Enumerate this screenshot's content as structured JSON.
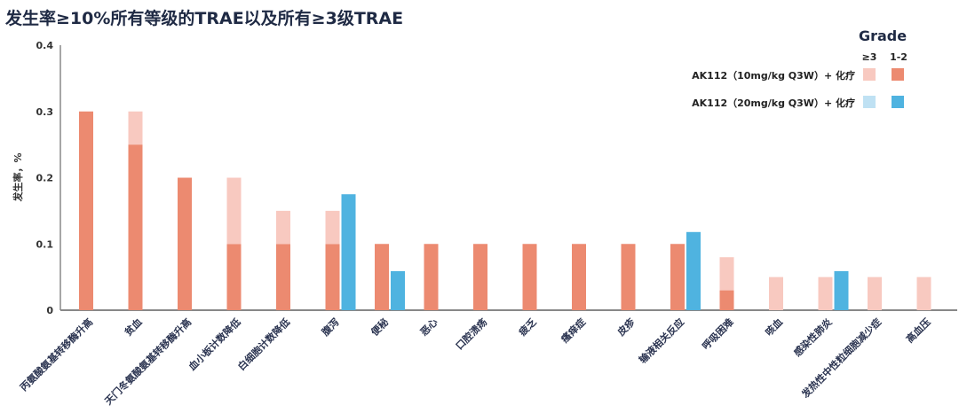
{
  "title": "发生率≥10%所有等级的TRAE以及所有≥3级TRAE",
  "chart_data": {
    "type": "bar",
    "stacked": true,
    "title": "发生率≥10%所有等级的TRAE以及所有≥3级TRAE",
    "xlabel": "",
    "ylabel": "发生率，%",
    "ylim": [
      0,
      0.4
    ],
    "yticks": [
      "0",
      "0.1",
      "0.2",
      "0.3",
      "0.4"
    ],
    "grid": false,
    "legend_placement": "top-right",
    "legend_title": "Grade",
    "legend_columns": [
      "≥3",
      "1-2"
    ],
    "categories": [
      "丙氨酸氨基转移酶升高",
      "贫血",
      "天门冬氨酸氨基转移酶升高",
      "血小板计数降低",
      "白细胞计数降低",
      "腹泻",
      "便秘",
      "恶心",
      "口腔溃疡",
      "疲乏",
      "瘙痒症",
      "皮疹",
      "输液相关反应",
      "呼吸困难",
      "咳血",
      "感染性肺炎",
      "发热性中性粒细胞减少症",
      "高血压"
    ],
    "series": [
      {
        "name": "AK112（10mg/kg Q3W）+ 化疗",
        "group": "10mg",
        "grade_1_2": [
          0.3,
          0.25,
          0.2,
          0.1,
          0.1,
          0.1,
          0.1,
          0.1,
          0.1,
          0.1,
          0.1,
          0.1,
          0.1,
          0.03,
          0,
          0,
          0,
          0
        ],
        "grade_3_plus": [
          0,
          0.05,
          0,
          0.1,
          0.05,
          0.05,
          0,
          0,
          0,
          0,
          0,
          0,
          0,
          0.05,
          0.05,
          0.05,
          0.05,
          0.05
        ],
        "colors": {
          "grade_3_plus": "#f8c9c0",
          "grade_1_2": "#ec8a70"
        }
      },
      {
        "name": "AK112（20mg/kg Q3W）+ 化疗",
        "group": "20mg",
        "grade_1_2": [
          0,
          0,
          0,
          0,
          0,
          0.175,
          0.059,
          0,
          0,
          0,
          0,
          0,
          0.118,
          0,
          0,
          0.059,
          0,
          0
        ],
        "grade_3_plus": [
          0,
          0,
          0,
          0,
          0,
          0,
          0,
          0,
          0,
          0,
          0,
          0,
          0,
          0,
          0,
          0,
          0,
          0
        ],
        "colors": {
          "grade_3_plus": "#bfe1f3",
          "grade_1_2": "#4fb3e0"
        }
      }
    ]
  }
}
